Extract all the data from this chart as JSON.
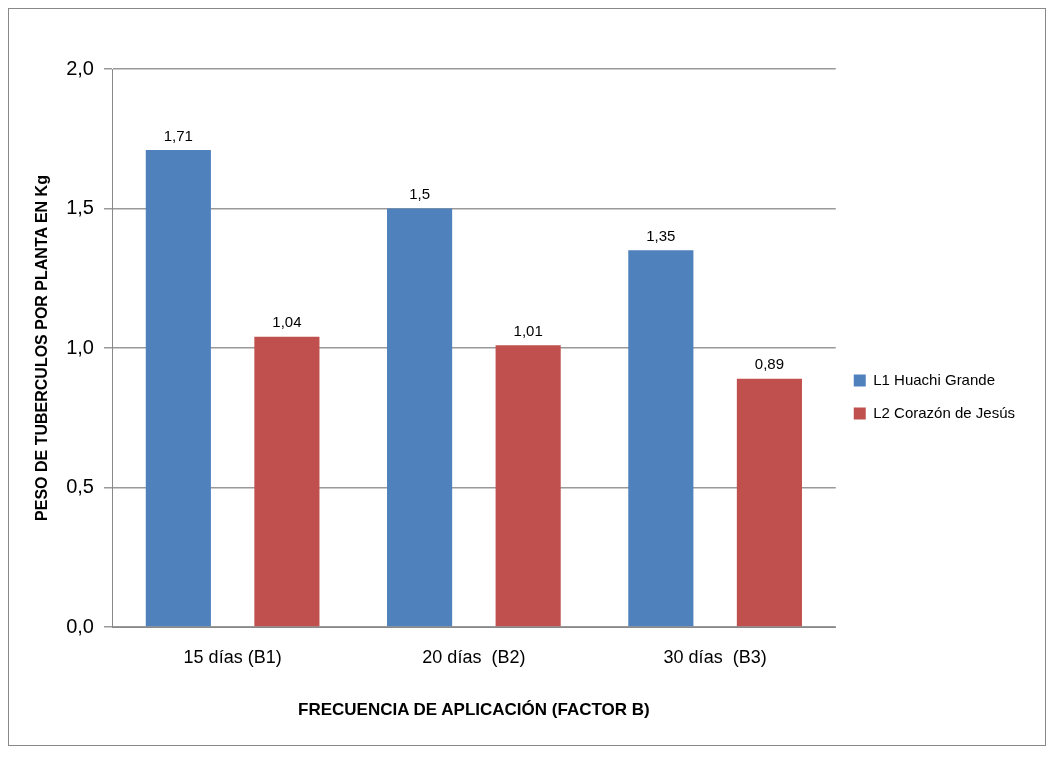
{
  "chart_data": {
    "type": "bar",
    "xlabel": "FRECUENCIA DE APLICACIÓN (FACTOR B)",
    "ylabel": "PESO DE TUBERCULOS POR PLANTA EN Kg",
    "categories": [
      "15 días (B1)",
      "20 días  (B2)",
      "30 días  (B3)"
    ],
    "series": [
      {
        "name": "L1 Huachi Grande",
        "color": "#4f81bd",
        "values": [
          1.71,
          1.5,
          1.35
        ],
        "value_labels": [
          "1,71",
          "1,5",
          "1,35"
        ]
      },
      {
        "name": "L2 Corazón de Jesús",
        "color": "#c0504d",
        "values": [
          1.04,
          1.01,
          0.89
        ],
        "value_labels": [
          "1,04",
          "1,01",
          "0,89"
        ]
      }
    ],
    "ylim": [
      0,
      2
    ],
    "yticks": [
      {
        "value": 0,
        "label": "0,0"
      },
      {
        "value": 0.5,
        "label": "0,5"
      },
      {
        "value": 1,
        "label": "1,0"
      },
      {
        "value": 1.5,
        "label": "1,5"
      },
      {
        "value": 2,
        "label": "2,0"
      }
    ],
    "grid": "y",
    "legend": "right"
  }
}
